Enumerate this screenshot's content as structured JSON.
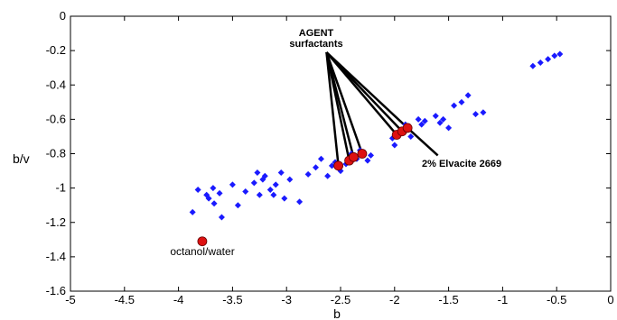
{
  "chart_data": {
    "type": "scatter",
    "xlabel": "b",
    "ylabel": "b/v",
    "xlim": [
      -5,
      0
    ],
    "ylim": [
      -1.6,
      0
    ],
    "xticks": [
      -5,
      -4.5,
      -4,
      -3.5,
      -3,
      -2.5,
      -2,
      -1.5,
      -1,
      -0.5,
      0
    ],
    "yticks": [
      0,
      -0.2,
      -0.4,
      -0.6,
      -0.8,
      -1,
      -1.2,
      -1.4,
      -1.6
    ],
    "xtick_labels": [
      "-5",
      "-4.5",
      "-4",
      "-3.5",
      "-3",
      "-2.5",
      "-2",
      "-1.5",
      "-1",
      "-0.5",
      "0"
    ],
    "ytick_labels": [
      "0",
      "-0.2",
      "-0.4",
      "-0.6",
      "-0.8",
      "-1",
      "-1.2",
      "-1.4",
      "-1.6"
    ],
    "grid": false,
    "series": [
      {
        "marker": "diamond",
        "color": "#1a1aff",
        "points": [
          [
            -3.87,
            -1.14
          ],
          [
            -3.82,
            -1.01
          ],
          [
            -3.74,
            -1.04
          ],
          [
            -3.72,
            -1.06
          ],
          [
            -3.68,
            -1.0
          ],
          [
            -3.67,
            -1.09
          ],
          [
            -3.62,
            -1.03
          ],
          [
            -3.6,
            -1.17
          ],
          [
            -3.5,
            -0.98
          ],
          [
            -3.45,
            -1.1
          ],
          [
            -3.38,
            -1.02
          ],
          [
            -3.3,
            -0.97
          ],
          [
            -3.27,
            -0.91
          ],
          [
            -3.25,
            -1.04
          ],
          [
            -3.22,
            -0.95
          ],
          [
            -3.2,
            -0.93
          ],
          [
            -3.15,
            -1.01
          ],
          [
            -3.12,
            -1.04
          ],
          [
            -3.1,
            -0.98
          ],
          [
            -3.05,
            -0.91
          ],
          [
            -3.02,
            -1.06
          ],
          [
            -2.97,
            -0.95
          ],
          [
            -2.88,
            -1.08
          ],
          [
            -2.8,
            -0.92
          ],
          [
            -2.73,
            -0.88
          ],
          [
            -2.68,
            -0.83
          ],
          [
            -2.62,
            -0.93
          ],
          [
            -2.58,
            -0.87
          ],
          [
            -2.55,
            -0.85
          ],
          [
            -2.5,
            -0.9
          ],
          [
            -2.45,
            -0.86
          ],
          [
            -2.4,
            -0.8
          ],
          [
            -2.35,
            -0.83
          ],
          [
            -2.32,
            -0.78
          ],
          [
            -2.25,
            -0.84
          ],
          [
            -2.22,
            -0.81
          ],
          [
            -2.02,
            -0.71
          ],
          [
            -2.0,
            -0.75
          ],
          [
            -1.95,
            -0.68
          ],
          [
            -1.92,
            -0.66
          ],
          [
            -1.9,
            -0.63
          ],
          [
            -1.85,
            -0.7
          ],
          [
            -1.78,
            -0.6
          ],
          [
            -1.75,
            -0.63
          ],
          [
            -1.72,
            -0.61
          ],
          [
            -1.62,
            -0.58
          ],
          [
            -1.58,
            -0.62
          ],
          [
            -1.55,
            -0.6
          ],
          [
            -1.5,
            -0.65
          ],
          [
            -1.45,
            -0.52
          ],
          [
            -1.38,
            -0.5
          ],
          [
            -1.32,
            -0.46
          ],
          [
            -1.25,
            -0.57
          ],
          [
            -1.18,
            -0.56
          ],
          [
            -0.72,
            -0.29
          ],
          [
            -0.65,
            -0.27
          ],
          [
            -0.58,
            -0.25
          ],
          [
            -0.52,
            -0.23
          ],
          [
            -0.47,
            -0.22
          ]
        ]
      },
      {
        "marker": "circle",
        "color": "#dd1111",
        "points": [
          [
            -3.78,
            -1.31
          ],
          [
            -2.52,
            -0.87
          ],
          [
            -2.42,
            -0.84
          ],
          [
            -2.38,
            -0.82
          ],
          [
            -2.3,
            -0.8
          ],
          [
            -1.98,
            -0.69
          ],
          [
            -1.93,
            -0.67
          ],
          [
            -1.88,
            -0.65
          ]
        ]
      }
    ],
    "annotations": [
      {
        "text": "AGENT",
        "bold": true
      },
      {
        "text": "surfactants",
        "bold": true
      },
      {
        "text": "2% Elvacite 2669",
        "bold": true
      },
      {
        "text": "octanol/water",
        "bold": false
      }
    ],
    "agent_lines": {
      "origin": [
        -2.63,
        -0.21
      ],
      "targets": [
        [
          -2.52,
          -0.87
        ],
        [
          -2.42,
          -0.84
        ],
        [
          -2.38,
          -0.82
        ],
        [
          -2.3,
          -0.8
        ],
        [
          -1.98,
          -0.69
        ],
        [
          -1.93,
          -0.67
        ],
        [
          -1.88,
          -0.65
        ]
      ]
    },
    "elvacite_line": {
      "from": [
        -1.88,
        -0.65
      ],
      "to": [
        -1.6,
        -0.81
      ]
    }
  }
}
